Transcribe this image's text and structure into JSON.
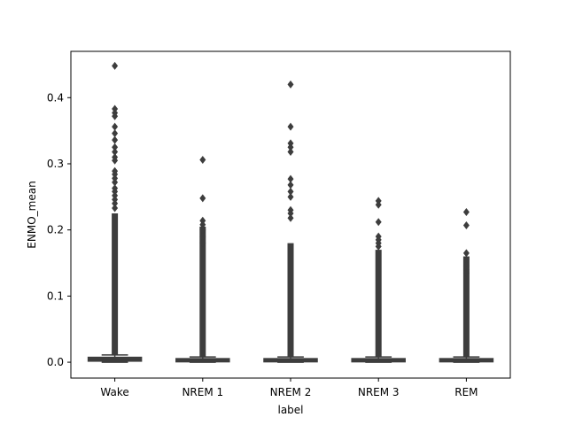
{
  "chart_data": {
    "type": "box",
    "title": "",
    "xlabel": "label",
    "ylabel": "ENMO_mean",
    "ylim": [
      -0.024,
      0.47
    ],
    "yticks": [
      0.0,
      0.1,
      0.2,
      0.3,
      0.4
    ],
    "ytick_labels": [
      "0.0",
      "0.1",
      "0.2",
      "0.3",
      "0.4"
    ],
    "categories": [
      "Wake",
      "NREM 1",
      "NREM 2",
      "NREM 3",
      "REM"
    ],
    "box_color": "#3d3d3d",
    "boxes": [
      {
        "label": "Wake",
        "q1": 0.002,
        "median": 0.004,
        "q3": 0.007,
        "whisker_low": 0.0,
        "whisker_high": 0.011,
        "outliers": [
          0.448,
          0.383,
          0.377,
          0.372,
          0.356,
          0.346,
          0.336,
          0.325,
          0.318,
          0.31,
          0.305,
          0.289,
          0.284,
          0.278,
          0.272,
          0.263,
          0.258,
          0.252,
          0.246,
          0.24,
          0.233
        ]
      },
      {
        "label": "NREM 1",
        "q1": 0.001,
        "median": 0.002,
        "q3": 0.005,
        "whisker_low": 0.0,
        "whisker_high": 0.008,
        "outliers": [
          0.306,
          0.248,
          0.214,
          0.208,
          0.2,
          0.19,
          0.18
        ]
      },
      {
        "label": "NREM 2",
        "q1": 0.001,
        "median": 0.002,
        "q3": 0.005,
        "whisker_low": 0.0,
        "whisker_high": 0.008,
        "outliers": [
          0.42,
          0.356,
          0.331,
          0.325,
          0.318,
          0.277,
          0.268,
          0.258,
          0.25,
          0.23,
          0.225,
          0.218
        ]
      },
      {
        "label": "NREM 3",
        "q1": 0.001,
        "median": 0.002,
        "q3": 0.005,
        "whisker_low": 0.0,
        "whisker_high": 0.008,
        "outliers": [
          0.244,
          0.238,
          0.212,
          0.19,
          0.185,
          0.18,
          0.175
        ]
      },
      {
        "label": "REM",
        "q1": 0.001,
        "median": 0.002,
        "q3": 0.005,
        "whisker_low": 0.0,
        "whisker_high": 0.008,
        "outliers": [
          0.227,
          0.207,
          0.165,
          0.146,
          0.14,
          0.135
        ]
      }
    ],
    "dense_outliers_top": [
      0.225,
      0.205,
      0.18,
      0.17,
      0.16
    ],
    "grid": false,
    "legend": "none"
  }
}
